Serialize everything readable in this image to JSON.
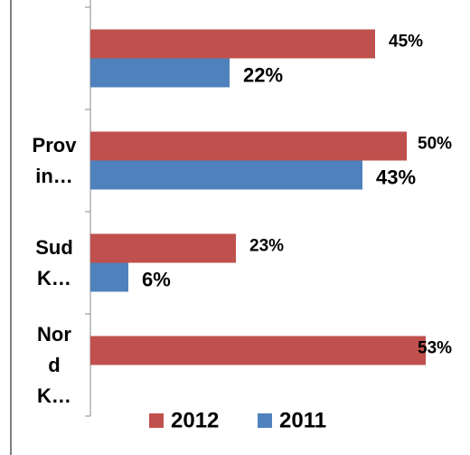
{
  "chart_data": {
    "type": "bar",
    "orientation": "horizontal",
    "categories": [
      null,
      "Provin…",
      "Sud K…",
      "Nord K…"
    ],
    "series": [
      {
        "name": "2012",
        "color": "#c0504d",
        "values": [
          45,
          50,
          23,
          53
        ],
        "value_labels": [
          "45%",
          "50%",
          "23%",
          "53%"
        ]
      },
      {
        "name": "2011",
        "color": "#4f81bd",
        "values": [
          22,
          43,
          6,
          null
        ],
        "value_labels": [
          "22%",
          "43%",
          "6%",
          null
        ]
      }
    ],
    "xlim": [
      0,
      60
    ],
    "legend": "bottom"
  }
}
